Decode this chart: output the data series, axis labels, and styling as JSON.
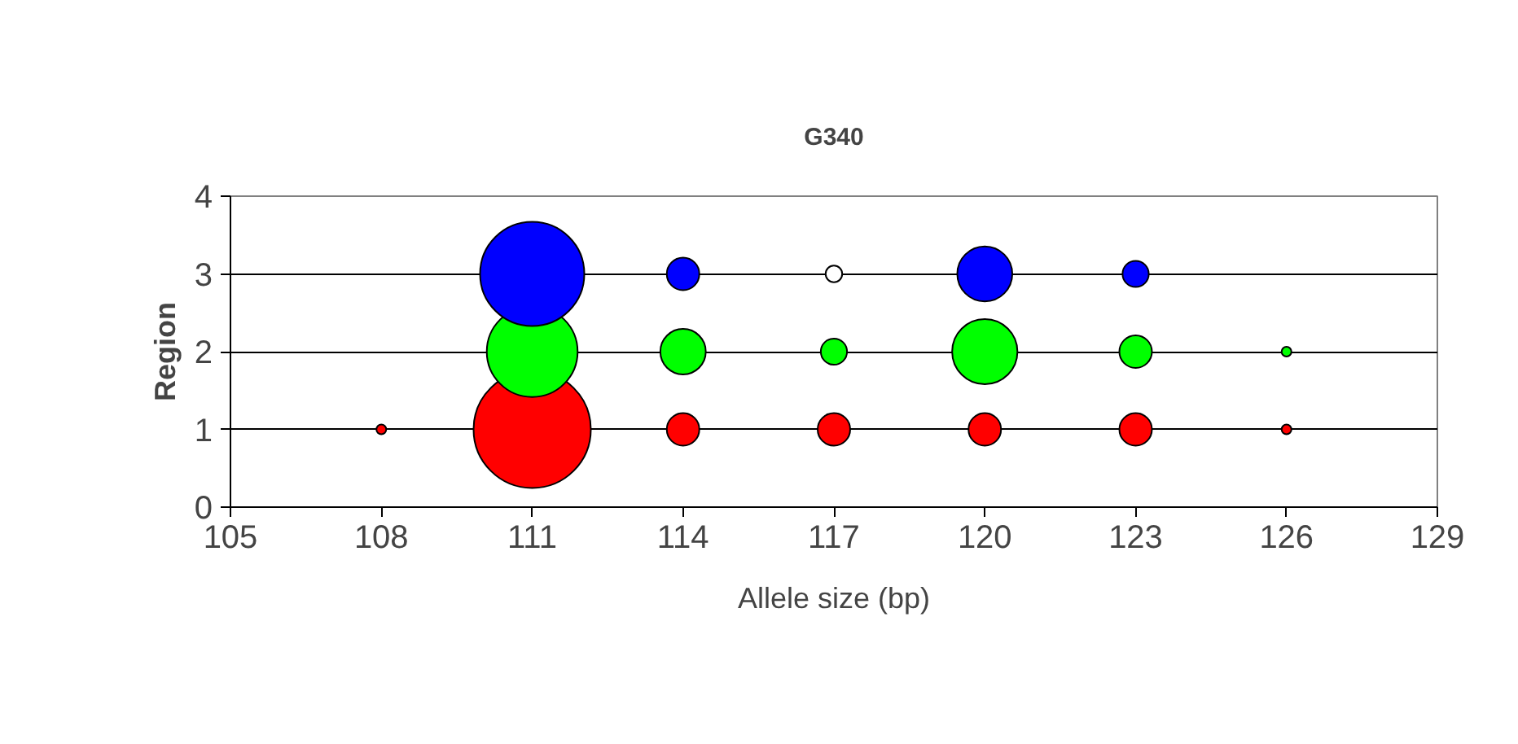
{
  "chart_data": {
    "type": "bubble",
    "title": "G340",
    "xlabel": "Allele size (bp)",
    "ylabel": "Region",
    "xlim": [
      105,
      129
    ],
    "xticks": [
      105,
      108,
      111,
      114,
      117,
      120,
      123,
      126,
      129
    ],
    "ylim": [
      0,
      4
    ],
    "yticks": [
      0,
      1,
      2,
      3,
      4
    ],
    "grid": "y",
    "series": [
      {
        "color": "#ff0000",
        "x": [
          108,
          111,
          114,
          117,
          120,
          123,
          126
        ],
        "values": [
          1,
          1,
          1,
          1,
          1,
          1,
          1
        ],
        "sizes": [
          0.007,
          1,
          0.077,
          0.077,
          0.077,
          0.077,
          0.007
        ]
      },
      {
        "color": "#00ff00",
        "x": [
          111,
          114,
          117,
          120,
          123,
          126
        ],
        "values": [
          2,
          2,
          2,
          2,
          2,
          2
        ],
        "sizes": [
          0.6,
          0.15,
          0.05,
          0.31,
          0.077,
          0.007
        ]
      },
      {
        "colors": [
          "#0000ff",
          "#0000ff",
          "#ffffff",
          "#0000ff",
          "#0000ff"
        ],
        "x": [
          111,
          114,
          117,
          120,
          123
        ],
        "values": [
          3,
          3,
          3,
          3,
          3
        ],
        "sizes": [
          0.79,
          0.077,
          0.02,
          0.22,
          0.05
        ]
      }
    ]
  }
}
